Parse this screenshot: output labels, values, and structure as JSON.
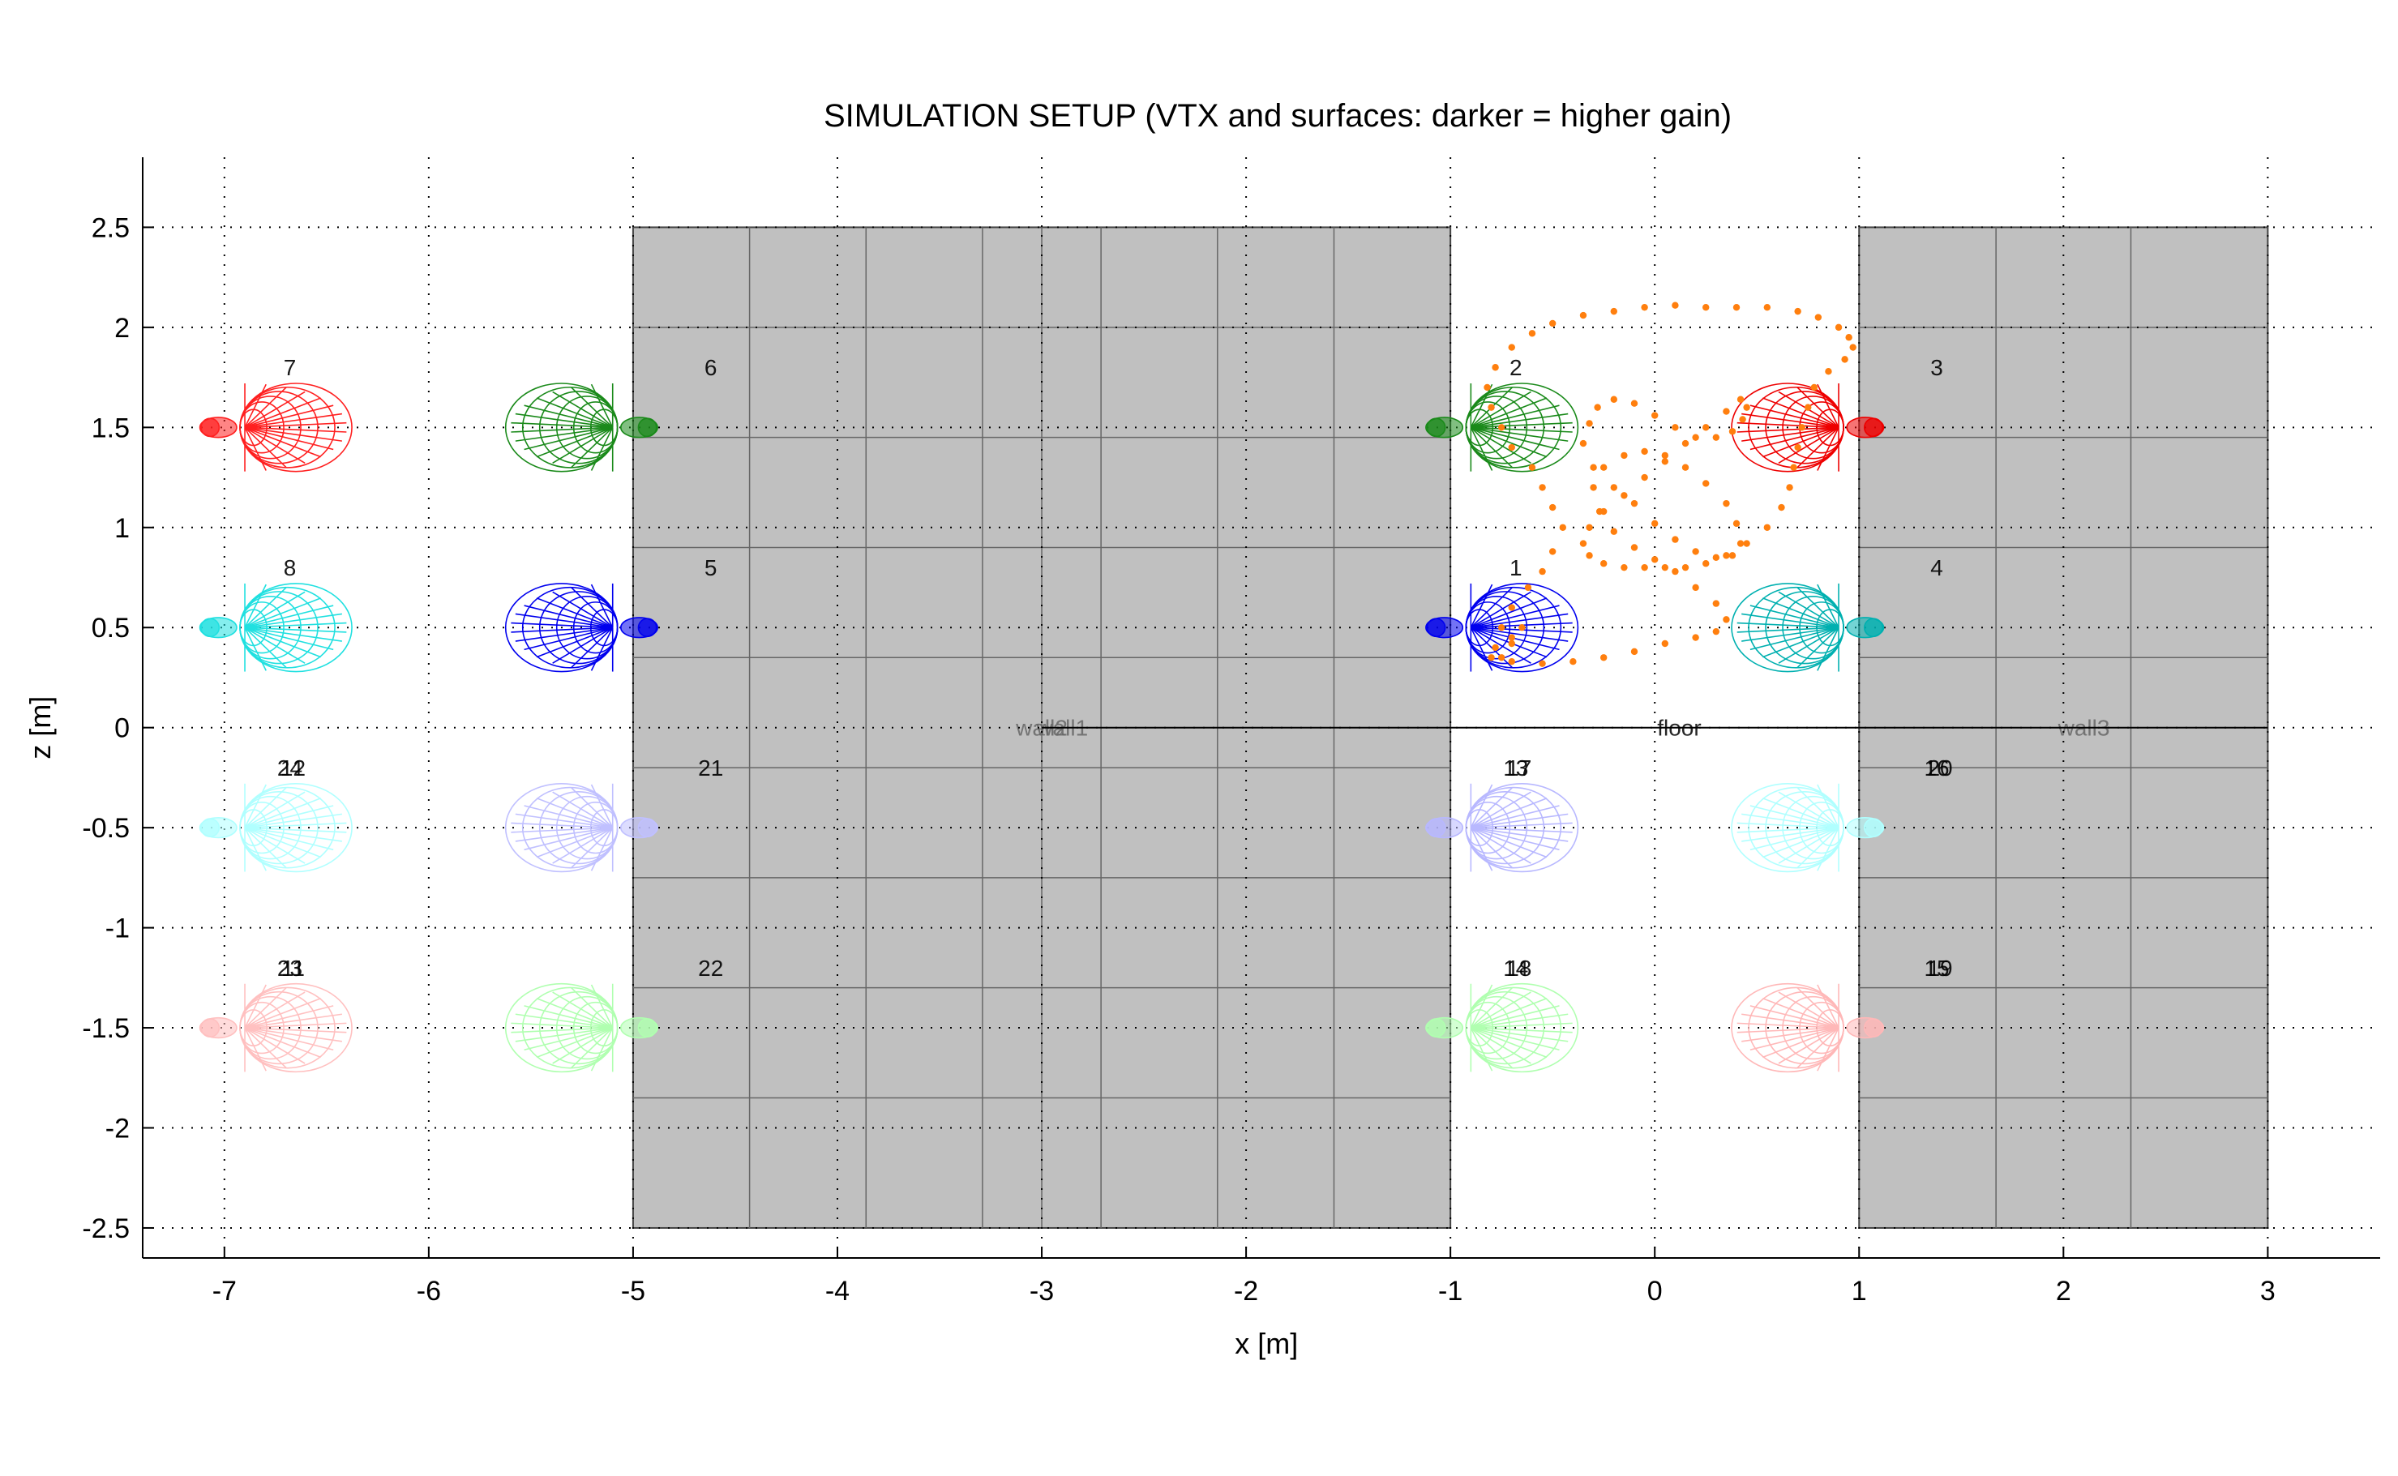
{
  "chart_data": {
    "type": "scatter",
    "title": "SIMULATION SETUP (VTX and surfaces: darker = higher gain)",
    "xlabel": "x [m]",
    "ylabel": "z [m]",
    "xlim": [
      -7.4,
      3.55
    ],
    "ylim": [
      -2.65,
      2.85
    ],
    "x_ticks": [
      -7,
      -6,
      -5,
      -4,
      -3,
      -2,
      -1,
      0,
      1,
      2,
      3
    ],
    "y_ticks": [
      2.5,
      2,
      1.5,
      1,
      0.5,
      0,
      -0.5,
      -1,
      -1.5,
      -2,
      -2.5
    ],
    "x_tick_labels": [
      "-7",
      "-6",
      "-5",
      "-4",
      "-3",
      "-2",
      "-1",
      "0",
      "1",
      "2",
      "3"
    ],
    "y_tick_labels": [
      "2.5",
      "2",
      "1.5",
      "1",
      "0.5",
      "0",
      "-0.5",
      "-1",
      "-1.5",
      "-2",
      "-2.5"
    ],
    "grid": true,
    "surfaces": [
      {
        "label": "wall2",
        "x": [
          -5,
          -1
        ],
        "z": [
          -2.5,
          2.5
        ],
        "color": "#c0c0c0",
        "label_x": -3.0,
        "label_color": "#666666",
        "v_lines": [
          -4.43,
          -3.86,
          -3.29,
          -3.0,
          -2.71,
          -2.14,
          -1.57
        ],
        "h_lines": [
          2.0,
          1.45,
          0.9,
          0.35,
          -0.2,
          -0.75,
          -1.3,
          -1.85
        ]
      },
      {
        "label": "wall1",
        "x": [
          -5,
          -1
        ],
        "z": [
          -2.5,
          2.5
        ],
        "color": "#c0c0c0",
        "label_x": -2.9,
        "label_color": "#666666",
        "v_lines": [],
        "h_lines": []
      },
      {
        "label": "wall3",
        "x": [
          1,
          3
        ],
        "z": [
          -2.5,
          2.5
        ],
        "color": "#c0c0c0",
        "label_x": 2.1,
        "label_color": "#666666",
        "v_lines": [
          1.67,
          2.33
        ],
        "h_lines": [
          2.0,
          1.45,
          0.9,
          0.35,
          -0.2,
          -0.75,
          -1.3,
          -1.85
        ]
      },
      {
        "label": "floor",
        "x": [
          -3,
          3
        ],
        "z": [
          0,
          0
        ],
        "color": "#000000",
        "label_x": 0.12,
        "label_color": "#000000",
        "v_lines": [],
        "h_lines": []
      }
    ],
    "sources": [
      {
        "labels": [
          "1"
        ],
        "x": -1,
        "z": 0.5,
        "dir": 1,
        "color": "#0000ee"
      },
      {
        "labels": [
          "2"
        ],
        "x": -1,
        "z": 1.5,
        "dir": 1,
        "color": "#1a8a1a"
      },
      {
        "labels": [
          "3"
        ],
        "x": 1,
        "z": 1.5,
        "dir": -1,
        "color": "#ee0000"
      },
      {
        "labels": [
          "4"
        ],
        "x": 1,
        "z": 0.5,
        "dir": -1,
        "color": "#00b0b0"
      },
      {
        "labels": [
          "5"
        ],
        "x": -5,
        "z": 0.5,
        "dir": -1,
        "color": "#0000ee"
      },
      {
        "labels": [
          "6"
        ],
        "x": -5,
        "z": 1.5,
        "dir": -1,
        "color": "#1a8a1a"
      },
      {
        "labels": [
          "7"
        ],
        "x": -7,
        "z": 1.5,
        "dir": 1,
        "color": "#ff2020"
      },
      {
        "labels": [
          "8"
        ],
        "x": -7,
        "z": 0.5,
        "dir": 1,
        "color": "#20e0e0"
      },
      {
        "labels": [
          "13",
          "17"
        ],
        "x": -1,
        "z": -0.5,
        "dir": 1,
        "color": "#b8b8ff"
      },
      {
        "labels": [
          "14",
          "18"
        ],
        "x": -1,
        "z": -1.5,
        "dir": 1,
        "color": "#b0ffb0"
      },
      {
        "labels": [
          "15",
          "19"
        ],
        "x": 1,
        "z": -1.5,
        "dir": -1,
        "color": "#ffb8b8"
      },
      {
        "labels": [
          "16",
          "20"
        ],
        "x": 1,
        "z": -0.5,
        "dir": -1,
        "color": "#b0ffff"
      },
      {
        "labels": [
          "21"
        ],
        "x": -5,
        "z": -0.5,
        "dir": -1,
        "color": "#c0c0ff"
      },
      {
        "labels": [
          "22"
        ],
        "x": -5,
        "z": -1.5,
        "dir": -1,
        "color": "#b0ffb0"
      },
      {
        "labels": [
          "23",
          "11"
        ],
        "x": -7,
        "z": -1.5,
        "dir": 1,
        "color": "#ffc0c0"
      },
      {
        "labels": [
          "24",
          "12"
        ],
        "x": -7,
        "z": -0.5,
        "dir": 1,
        "color": "#b0ffff"
      }
    ],
    "trajectory": {
      "color": "#ff7f0e",
      "x": [
        -0.75,
        -0.7,
        -0.62,
        -0.55,
        -0.5,
        -0.45,
        -0.5,
        -0.55,
        -0.6,
        -0.7,
        -0.75,
        -0.8,
        -0.82,
        -0.78,
        -0.7,
        -0.6,
        -0.5,
        -0.35,
        -0.2,
        -0.05,
        0.1,
        0.25,
        0.4,
        0.55,
        0.7,
        0.8,
        0.9,
        0.95,
        0.97,
        0.93,
        0.85,
        0.78,
        0.75,
        0.72,
        0.7,
        0.68,
        0.66,
        0.62,
        0.55,
        0.45,
        0.35,
        0.25,
        0.15,
        0.05,
        -0.05,
        -0.15,
        -0.25,
        -0.32,
        -0.35,
        -0.32,
        -0.25,
        -0.15,
        -0.05,
        0.05,
        0.15,
        0.25,
        0.35,
        0.42,
        0.45,
        0.43,
        0.38,
        0.3,
        0.2,
        0.1,
        0.0,
        -0.1,
        -0.2,
        -0.28,
        -0.32,
        -0.35,
        -0.3,
        -0.2,
        -0.1,
        0.0,
        0.1,
        0.2,
        0.3,
        0.38,
        0.42,
        0.4,
        0.35,
        0.25,
        0.15,
        0.05,
        -0.05,
        -0.15,
        -0.25,
        -0.3,
        -0.27,
        -0.2,
        -0.1,
        0.0,
        0.1,
        0.2,
        0.3,
        0.35,
        0.3,
        0.2,
        0.05,
        -0.1,
        -0.25,
        -0.4,
        -0.55,
        -0.7,
        -0.8,
        -0.78,
        -0.7,
        -0.65,
        -0.7,
        -0.75
      ],
      "z": [
        0.5,
        0.6,
        0.7,
        0.78,
        0.88,
        1.0,
        1.1,
        1.2,
        1.3,
        1.4,
        1.5,
        1.6,
        1.7,
        1.8,
        1.9,
        1.97,
        2.02,
        2.06,
        2.08,
        2.1,
        2.11,
        2.1,
        2.1,
        2.1,
        2.08,
        2.05,
        2.0,
        1.95,
        1.9,
        1.84,
        1.78,
        1.7,
        1.6,
        1.5,
        1.4,
        1.3,
        1.2,
        1.1,
        1.0,
        0.92,
        0.86,
        0.82,
        0.8,
        0.8,
        0.8,
        0.8,
        0.82,
        0.86,
        0.92,
        1.0,
        1.08,
        1.16,
        1.25,
        1.33,
        1.42,
        1.5,
        1.58,
        1.64,
        1.6,
        1.54,
        1.48,
        1.45,
        1.45,
        1.5,
        1.56,
        1.62,
        1.64,
        1.6,
        1.52,
        1.42,
        1.3,
        1.2,
        1.12,
        1.02,
        0.94,
        0.88,
        0.85,
        0.86,
        0.92,
        1.02,
        1.12,
        1.22,
        1.3,
        1.36,
        1.38,
        1.36,
        1.3,
        1.2,
        1.08,
        0.98,
        0.9,
        0.84,
        0.78,
        0.7,
        0.62,
        0.54,
        0.48,
        0.45,
        0.42,
        0.38,
        0.35,
        0.33,
        0.32,
        0.33,
        0.35,
        0.4,
        0.45,
        0.5,
        0.42,
        0.35
      ]
    }
  }
}
